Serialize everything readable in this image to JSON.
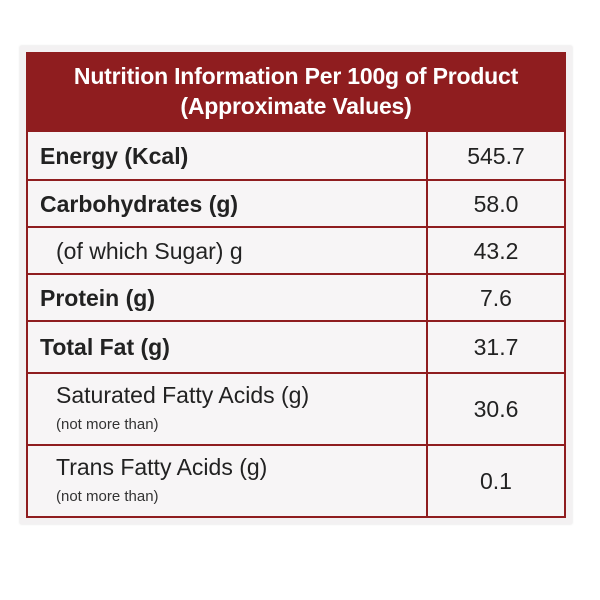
{
  "header": {
    "line1": "Nutrition Information Per 100g of Product",
    "line2": "(Approximate Values)"
  },
  "rows": [
    {
      "name": "Energy (Kcal)",
      "value": "545.7",
      "bold": true
    },
    {
      "name": "Carbohydrates (g)",
      "value": "58.0",
      "bold": true
    },
    {
      "name": "(of which Sugar) g",
      "value": "43.2",
      "bold": false
    },
    {
      "name": "Protein (g)",
      "value": "7.6",
      "bold": true
    },
    {
      "name": "Total Fat (g)",
      "value": "31.7",
      "bold": true
    },
    {
      "name": "Saturated Fatty Acids (g)",
      "note": "(not more than)",
      "value": "30.6",
      "bold": false
    },
    {
      "name": "Trans Fatty Acids (g)",
      "note": "(not more than)",
      "value": "0.1",
      "bold": false
    }
  ],
  "colors": {
    "accent": "#8f1d1f",
    "text": "#222222",
    "background": "#f7f5f6"
  }
}
